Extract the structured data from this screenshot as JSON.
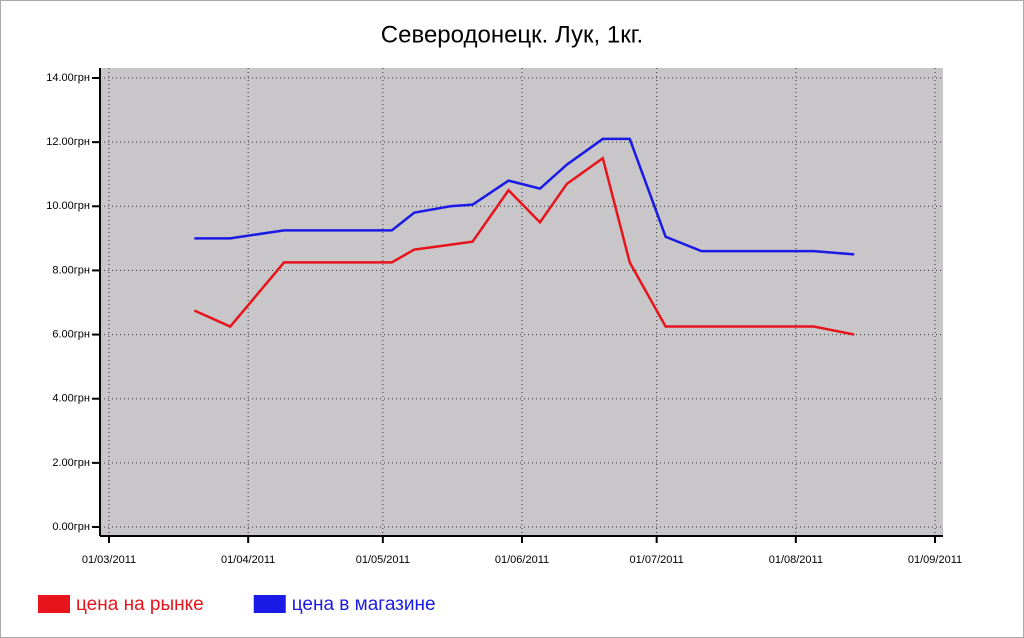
{
  "chart_data": {
    "type": "line",
    "title": "Северодонецк. Лук, 1кг.",
    "x": [
      "2011-03-20",
      "2011-03-28",
      "2011-04-09",
      "2011-04-16",
      "2011-04-23",
      "2011-05-03",
      "2011-05-08",
      "2011-05-16",
      "2011-05-21",
      "2011-05-29",
      "2011-06-05",
      "2011-06-11",
      "2011-06-19",
      "2011-06-25",
      "2011-07-03",
      "2011-07-11",
      "2011-07-19",
      "2011-07-27",
      "2011-08-05",
      "2011-08-14"
    ],
    "series": [
      {
        "name": "цена на рынке",
        "color": "#e8141c",
        "values": [
          6.75,
          6.25,
          8.25,
          8.25,
          8.25,
          8.25,
          8.65,
          8.8,
          8.9,
          10.5,
          9.5,
          10.7,
          11.5,
          8.25,
          6.25,
          6.25,
          6.25,
          6.25,
          6.25,
          6.0
        ]
      },
      {
        "name": "цена в магазине",
        "color": "#1a1ae6",
        "values": [
          9.0,
          9.0,
          9.25,
          9.25,
          9.25,
          9.25,
          9.8,
          10.0,
          10.05,
          10.8,
          10.55,
          11.3,
          12.1,
          12.1,
          9.05,
          8.6,
          8.6,
          8.6,
          8.6,
          8.5
        ]
      }
    ],
    "xlim": [
      "2011-03-01",
      "2011-09-01"
    ],
    "xticks": [
      {
        "value": "2011-03-01",
        "label": "01/03/2011"
      },
      {
        "value": "2011-04-01",
        "label": "01/04/2011"
      },
      {
        "value": "2011-05-01",
        "label": "01/05/2011"
      },
      {
        "value": "2011-06-01",
        "label": "01/06/2011"
      },
      {
        "value": "2011-07-01",
        "label": "01/07/2011"
      },
      {
        "value": "2011-08-01",
        "label": "01/08/2011"
      },
      {
        "value": "2011-09-01",
        "label": "01/09/2011"
      }
    ],
    "ylim": [
      0,
      14
    ],
    "yticks": [
      {
        "value": 0,
        "label": "0.00грн"
      },
      {
        "value": 2,
        "label": "2.00грн"
      },
      {
        "value": 4,
        "label": "4.00грн"
      },
      {
        "value": 6,
        "label": "6.00грн"
      },
      {
        "value": 8,
        "label": "8.00грн"
      },
      {
        "value": 10,
        "label": "10.00грн"
      },
      {
        "value": 12,
        "label": "12.00грн"
      },
      {
        "value": 14,
        "label": "14.00грн"
      }
    ],
    "grid": true,
    "legend": "bottom"
  }
}
